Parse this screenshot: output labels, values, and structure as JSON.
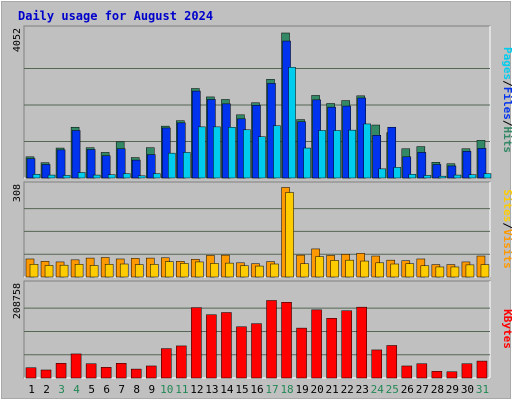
{
  "chart_data": {
    "type": "bar",
    "title": "Daily usage for August 2024",
    "categories": [
      "1",
      "2",
      "3",
      "4",
      "5",
      "6",
      "7",
      "8",
      "9",
      "10",
      "11",
      "12",
      "13",
      "14",
      "15",
      "16",
      "17",
      "18",
      "19",
      "20",
      "21",
      "22",
      "23",
      "24",
      "25",
      "26",
      "27",
      "28",
      "29",
      "30",
      "31"
    ],
    "weekend_days": [
      "3",
      "4",
      "10",
      "11",
      "17",
      "18",
      "24",
      "25",
      "31"
    ],
    "panels": [
      {
        "id": "hits-files-pages",
        "ymax_label": "4052",
        "ylim": [
          0,
          4052
        ],
        "legend": [
          "Pages",
          "/",
          "Files",
          "/",
          "Hits"
        ],
        "series": [
          {
            "name": "Hits",
            "color": "#338866",
            "values": [
              580,
              420,
              820,
              1390,
              830,
              700,
              990,
              560,
              830,
              1420,
              1570,
              2450,
              2220,
              2150,
              1730,
              2060,
              2700,
              3970,
              1600,
              2260,
              2040,
              2120,
              2250,
              1450,
              1240,
              800,
              860,
              430,
              390,
              800,
              1030
            ]
          },
          {
            "name": "Files",
            "color": "#0033ee",
            "values": [
              530,
              370,
              770,
              1300,
              780,
              610,
              800,
              490,
              640,
              1370,
              1510,
              2380,
              2150,
              2030,
              1620,
              1990,
              2590,
              3750,
              1540,
              2140,
              1940,
              1970,
              2190,
              1170,
              1390,
              580,
              700,
              370,
              330,
              730,
              810
            ]
          },
          {
            "name": "Pages",
            "color": "#00ccee",
            "values": [
              100,
              80,
              70,
              150,
              80,
              90,
              120,
              60,
              120,
              680,
              700,
              1400,
              1400,
              1390,
              1320,
              1130,
              1430,
              3030,
              820,
              1300,
              1300,
              1310,
              1480,
              250,
              290,
              100,
              70,
              50,
              80,
              90,
              120
            ]
          }
        ]
      },
      {
        "id": "sites-visits",
        "ymax_label": "308",
        "ylim": [
          0,
          308
        ],
        "legend": [
          "Sites",
          "/",
          "Visits"
        ],
        "series": [
          {
            "name": "Visits",
            "color": "#ff9900",
            "values": [
              61,
              53,
              51,
              58,
              64,
              66,
              61,
              63,
              64,
              65,
              53,
              60,
              73,
              74,
              48,
              45,
              52,
              303,
              74,
              95,
              73,
              77,
              80,
              71,
              57,
              55,
              61,
              42,
              42,
              51,
              71
            ]
          },
          {
            "name": "Sites",
            "color": "#ffcc00",
            "values": [
              43,
              39,
              40,
              43,
              39,
              43,
              44,
              42,
              43,
              52,
              46,
              51,
              46,
              47,
              38,
              37,
              44,
              286,
              45,
              69,
              56,
              57,
              54,
              48,
              44,
              45,
              38,
              34,
              34,
              41,
              42
            ]
          }
        ]
      },
      {
        "id": "kbytes",
        "ymax_label": "208758",
        "ylim": [
          0,
          208758
        ],
        "legend": [
          "KBytes"
        ],
        "series": [
          {
            "name": "KBytes",
            "color": "#ff0000",
            "values": [
              23000,
              18000,
              33000,
              54000,
              32000,
              24000,
              33000,
              20000,
              27000,
              66000,
              72000,
              158000,
              142000,
              147000,
              115000,
              122000,
              174000,
              170000,
              112000,
              153000,
              134000,
              151000,
              159000,
              63000,
              73000,
              27000,
              32000,
              15000,
              14000,
              32000,
              38000
            ]
          }
        ]
      }
    ],
    "colors": {
      "title": "#0000cc",
      "weekend_label": "#228855",
      "weekday_label": "#000000",
      "plot_bg": "#c0c0c0",
      "grid": "#556655"
    }
  }
}
